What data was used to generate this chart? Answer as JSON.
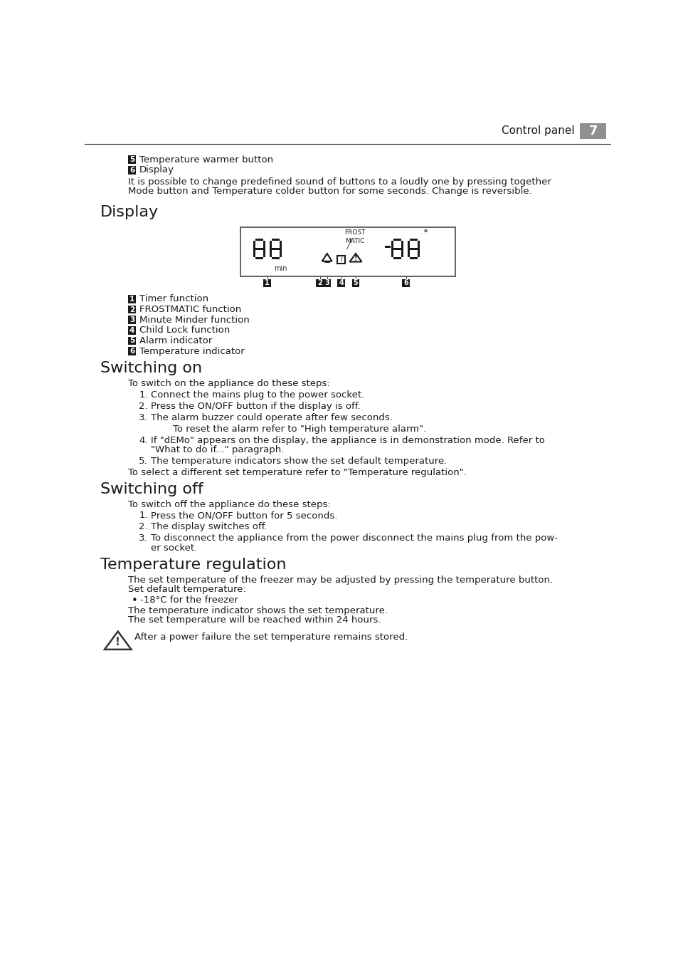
{
  "page_header_text": "Control panel",
  "page_number": "7",
  "bg_color": "#ffffff",
  "header_text_color": "#1a1a1a",
  "header_bg_color": "#909090",
  "badge_bg": "#1a1a1a",
  "badge_fg": "#ffffff",
  "body_font_size": 9.5,
  "section_font_size": 15.5,
  "content": [
    {
      "type": "badge_line",
      "badge": "5",
      "text": "Temperature warmer button"
    },
    {
      "type": "badge_line",
      "badge": "6",
      "text": "Display"
    },
    {
      "type": "para",
      "text": "It is possible to change predefined sound of buttons to a loudly one by pressing together\nMode button and Temperature colder button for some seconds. Change is reversible.",
      "extra_after": 0.012
    },
    {
      "type": "section",
      "text": "Display"
    },
    {
      "type": "display_image"
    },
    {
      "type": "badge_line",
      "badge": "1",
      "text": "Timer function"
    },
    {
      "type": "badge_line",
      "badge": "2",
      "text": "FROSTMATIC function"
    },
    {
      "type": "badge_line",
      "badge": "3",
      "text": "Minute Minder function"
    },
    {
      "type": "badge_line",
      "badge": "4",
      "text": "Child Lock function"
    },
    {
      "type": "badge_line",
      "badge": "5",
      "text": "Alarm indicator"
    },
    {
      "type": "badge_line",
      "badge": "6",
      "text": "Temperature indicator"
    },
    {
      "type": "section",
      "text": "Switching on"
    },
    {
      "type": "para",
      "text": "To switch on the appliance do these steps:"
    },
    {
      "type": "numbered",
      "num": "1.",
      "text": "Connect the mains plug to the power socket."
    },
    {
      "type": "numbered",
      "num": "2.",
      "text": "Press the ON/OFF button if the display is off."
    },
    {
      "type": "numbered",
      "num": "3.",
      "text": "The alarm buzzer could operate after few seconds."
    },
    {
      "type": "para",
      "text": "To reset the alarm refer to \"High temperature alarm\".",
      "indent_level": 2
    },
    {
      "type": "numbered",
      "num": "4.",
      "text": "If \"dEMo\" appears on the display, the appliance is in demonstration mode. Refer to\n\"What to do if...\" paragraph."
    },
    {
      "type": "numbered",
      "num": "5.",
      "text": "The temperature indicators show the set default temperature."
    },
    {
      "type": "para",
      "text": "To select a different set temperature refer to \"Temperature regulation\"."
    },
    {
      "type": "section",
      "text": "Switching off"
    },
    {
      "type": "para",
      "text": "To switch off the appliance do these steps:"
    },
    {
      "type": "numbered",
      "num": "1.",
      "text": "Press the ON/OFF button for 5 seconds."
    },
    {
      "type": "numbered",
      "num": "2.",
      "text": "The display switches off."
    },
    {
      "type": "numbered",
      "num": "3.",
      "text": "To disconnect the appliance from the power disconnect the mains plug from the pow-\ner socket."
    },
    {
      "type": "section",
      "text": "Temperature regulation"
    },
    {
      "type": "para",
      "text": "The set temperature of the freezer may be adjusted by pressing the temperature button.\nSet default temperature:"
    },
    {
      "type": "bullet",
      "text": "-18°C for the freezer"
    },
    {
      "type": "para",
      "text": "The temperature indicator shows the set temperature.\nThe set temperature will be reached within 24 hours.",
      "extra_after": 0.005
    },
    {
      "type": "warning",
      "text": "After a power failure the set temperature remains stored."
    }
  ]
}
